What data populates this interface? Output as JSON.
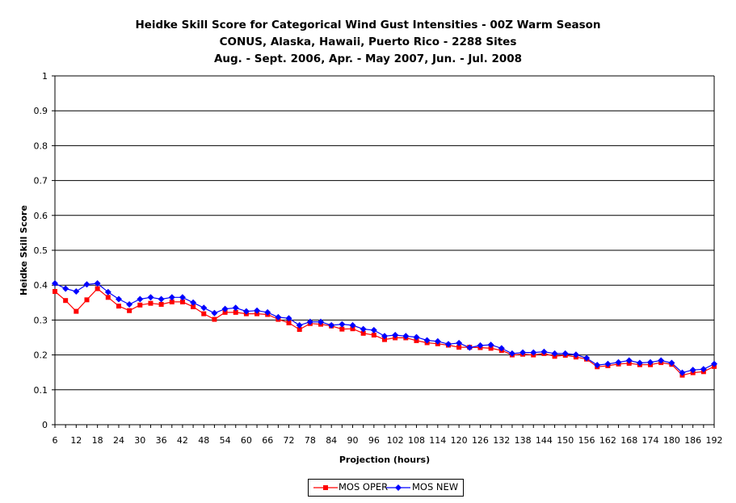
{
  "chart_data": {
    "type": "line",
    "title": [
      "Heidke Skill Score for Categorical Wind Gust Intensities - 00Z Warm Season",
      "CONUS, Alaska, Hawaii, Puerto Rico - 2288 Sites",
      "Aug. - Sept. 2006, Apr. - May 2007, Jun. - Jul. 2008"
    ],
    "xlabel": "Projection (hours)",
    "ylabel": "Heidke Skill Score",
    "ylim": [
      0,
      1
    ],
    "yticks": [
      "0",
      "0.1",
      "0.2",
      "0.3",
      "0.4",
      "0.5",
      "0.6",
      "0.7",
      "0.8",
      "0.9",
      "1"
    ],
    "grid": "horizontal",
    "legend": "bottom",
    "x": [
      6,
      9,
      12,
      15,
      18,
      21,
      24,
      27,
      30,
      33,
      36,
      39,
      42,
      45,
      48,
      51,
      54,
      57,
      60,
      63,
      66,
      69,
      72,
      75,
      78,
      81,
      84,
      87,
      90,
      93,
      96,
      99,
      102,
      105,
      108,
      111,
      114,
      117,
      120,
      123,
      126,
      129,
      132,
      135,
      138,
      141,
      144,
      147,
      150,
      153,
      156,
      159,
      162,
      165,
      168,
      171,
      174,
      177,
      180,
      183,
      186,
      189,
      192
    ],
    "xticks": [
      "6",
      "12",
      "18",
      "24",
      "30",
      "36",
      "42",
      "48",
      "54",
      "60",
      "66",
      "72",
      "78",
      "84",
      "90",
      "96",
      "102",
      "108",
      "114",
      "120",
      "126",
      "132",
      "138",
      "144",
      "150",
      "156",
      "162",
      "168",
      "174",
      "180",
      "186",
      "192"
    ],
    "series": [
      {
        "name": "MOS OPER",
        "color": "#ff0000",
        "marker": "square",
        "values": [
          0.382,
          0.356,
          0.325,
          0.358,
          0.39,
          0.365,
          0.34,
          0.327,
          0.343,
          0.348,
          0.345,
          0.352,
          0.352,
          0.338,
          0.318,
          0.302,
          0.322,
          0.322,
          0.318,
          0.318,
          0.316,
          0.302,
          0.292,
          0.273,
          0.29,
          0.288,
          0.283,
          0.274,
          0.275,
          0.262,
          0.257,
          0.244,
          0.249,
          0.249,
          0.241,
          0.235,
          0.232,
          0.228,
          0.222,
          0.222,
          0.221,
          0.219,
          0.213,
          0.2,
          0.202,
          0.2,
          0.204,
          0.196,
          0.199,
          0.194,
          0.188,
          0.166,
          0.169,
          0.174,
          0.176,
          0.172,
          0.172,
          0.178,
          0.173,
          0.142,
          0.149,
          0.152,
          0.167
        ]
      },
      {
        "name": "MOS NEW",
        "color": "#0000ff",
        "marker": "diamond",
        "values": [
          0.405,
          0.39,
          0.382,
          0.402,
          0.405,
          0.38,
          0.36,
          0.345,
          0.36,
          0.365,
          0.36,
          0.365,
          0.365,
          0.35,
          0.335,
          0.32,
          0.332,
          0.335,
          0.325,
          0.327,
          0.322,
          0.308,
          0.305,
          0.285,
          0.295,
          0.295,
          0.285,
          0.288,
          0.285,
          0.274,
          0.271,
          0.254,
          0.257,
          0.254,
          0.251,
          0.242,
          0.239,
          0.231,
          0.234,
          0.221,
          0.227,
          0.229,
          0.219,
          0.204,
          0.207,
          0.207,
          0.209,
          0.204,
          0.204,
          0.201,
          0.191,
          0.171,
          0.174,
          0.179,
          0.184,
          0.177,
          0.179,
          0.184,
          0.177,
          0.149,
          0.157,
          0.159,
          0.174
        ]
      }
    ]
  }
}
